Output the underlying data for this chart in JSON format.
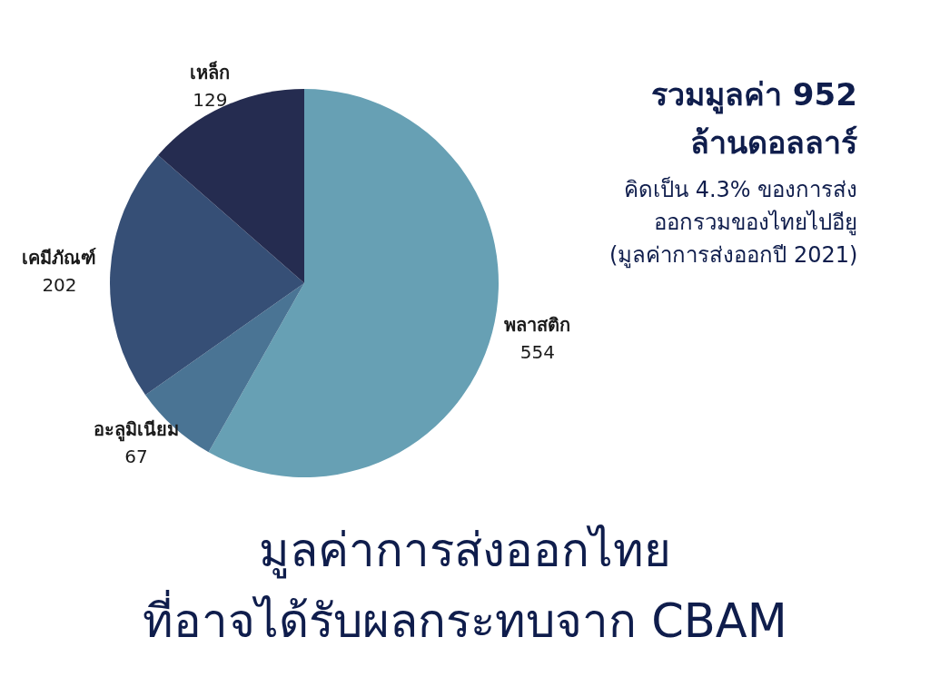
{
  "chart_data": {
    "type": "pie",
    "title": "มูลค่าการส่งออกไทย\nที่อาจได้รับผลกระทบจาก CBAM",
    "categories": [
      "พลาสติก",
      "อะลูมิเนียม",
      "เคมีภัณฑ์",
      "เหล็ก"
    ],
    "values": [
      554,
      67,
      202,
      129
    ],
    "colors": [
      "#67a0b4",
      "#4a7494",
      "#364f76",
      "#252c50"
    ],
    "data_labels": true,
    "annotations": [
      "รวมมูลค่า 952\nล้านดอลลาร์",
      "คิดเป็น 4.3% ของการส่ง\nออกรวมของไทยไปอียู\n(มูลค่าการส่งออกปี 2021)"
    ]
  }
}
